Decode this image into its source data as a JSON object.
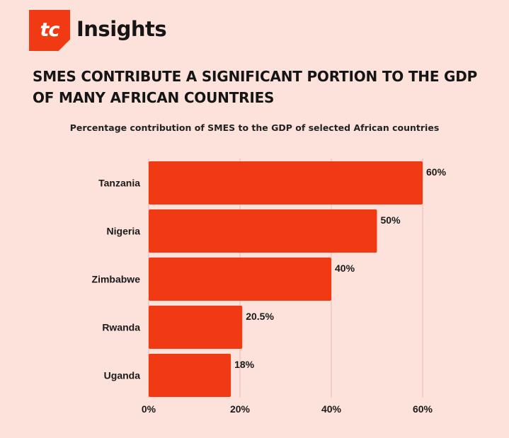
{
  "brand": {
    "logo_text": "tc",
    "name": "Insights"
  },
  "headline": "SMES CONTRIBUTE A SIGNIFICANT PORTION TO THE GDP OF MANY AFRICAN COUNTRIES",
  "colors": {
    "background": "#fde1db",
    "bar": "#f03a14",
    "gridline": "#e9b9b0"
  },
  "chart_data": {
    "type": "bar",
    "orientation": "horizontal",
    "title": "Percentage contribution of SMES to the GDP of selected African countries",
    "xlabel": "",
    "ylabel": "",
    "categories": [
      "Tanzania",
      "Nigeria",
      "Zimbabwe",
      "Rwanda",
      "Uganda"
    ],
    "values": [
      60,
      50,
      40,
      20.5,
      18
    ],
    "value_labels": [
      "60%",
      "50%",
      "40%",
      "20.5%",
      "18%"
    ],
    "xlim": [
      0,
      60
    ],
    "ticks": [
      0,
      20,
      40,
      60
    ],
    "tick_labels": [
      "0%",
      "20%",
      "40%",
      "60%"
    ],
    "grid": true
  }
}
